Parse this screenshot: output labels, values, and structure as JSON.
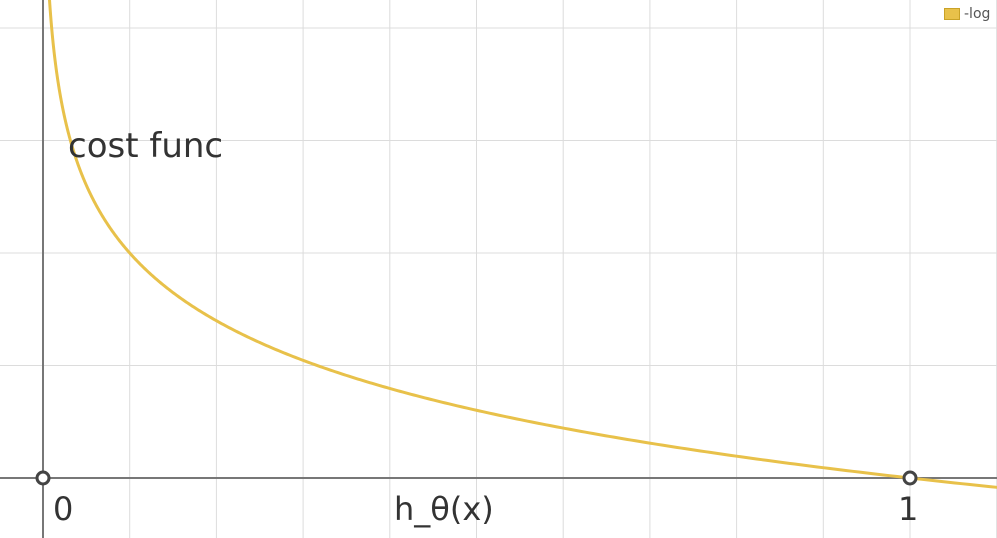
{
  "chart_data": {
    "type": "line",
    "title": "",
    "annotation": "cost func",
    "xlabel": "h_θ(x)",
    "ylabel": "",
    "xlim": [
      -0.05,
      1.1
    ],
    "ylim": [
      -0.012,
      2.22
    ],
    "x_ticks": [
      {
        "value": 0,
        "label": "0"
      },
      {
        "value": 1,
        "label": "1"
      }
    ],
    "grid": true,
    "x_grid_step": 0.1,
    "y_grid_step": 0.5,
    "marked_points": [
      {
        "x": 0,
        "y": 0
      },
      {
        "x": 1,
        "y": 0
      }
    ],
    "series": [
      {
        "name": "-log(x)",
        "function": "-log10(x)",
        "color": "#e8c14a"
      }
    ],
    "legend": {
      "position": "top-right",
      "label": "-log"
    }
  },
  "colors": {
    "curve": "#e8c14a",
    "grid": "#dcdcdc",
    "axis": "#777777",
    "marker": "#444444",
    "text": "#333333"
  }
}
